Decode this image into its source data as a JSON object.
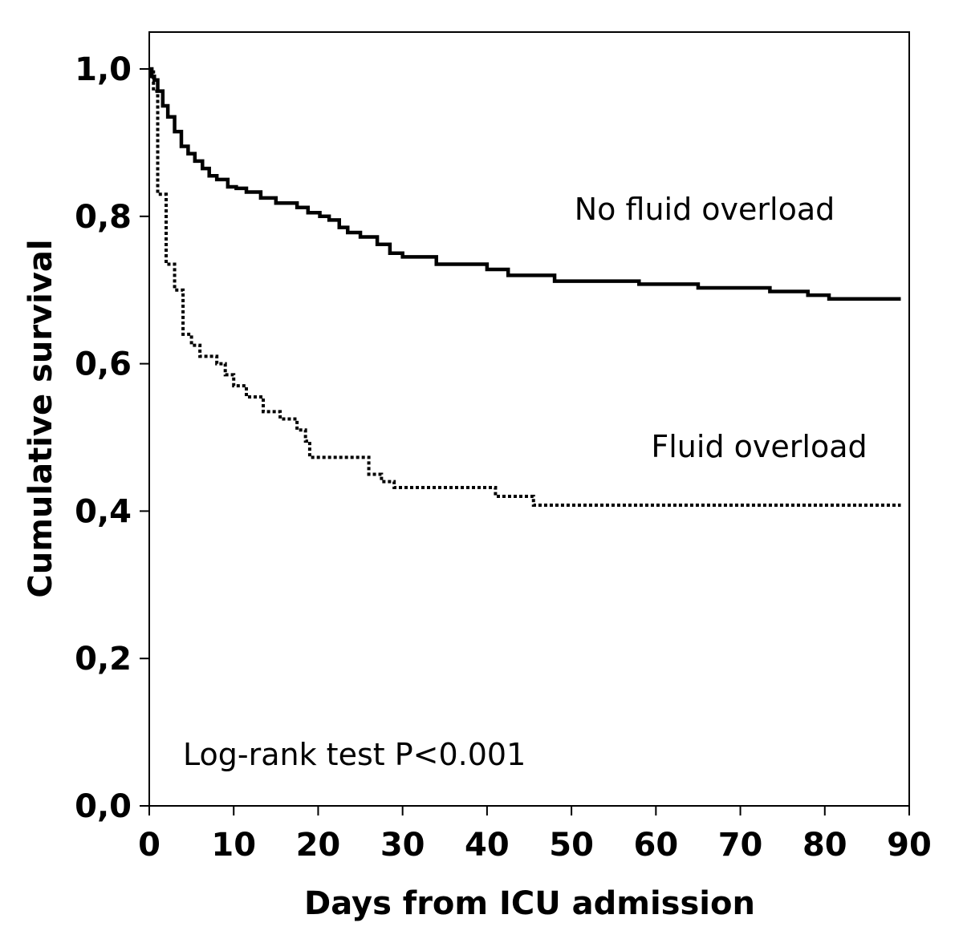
{
  "chart_data": {
    "type": "line",
    "subtype": "kaplan-meier-step",
    "xlabel": "Days from ICU admission",
    "ylabel": "Cumulative survival",
    "xlim": [
      0,
      90
    ],
    "ylim": [
      0,
      1.0
    ],
    "x_ticks": [
      0,
      10,
      20,
      30,
      40,
      50,
      60,
      70,
      80,
      90
    ],
    "x_tick_labels": [
      "0",
      "10",
      "20",
      "30",
      "40",
      "50",
      "60",
      "70",
      "80",
      "90"
    ],
    "y_ticks": [
      0,
      0.2,
      0.4,
      0.6,
      0.8,
      1.0
    ],
    "y_tick_labels": [
      "0,0",
      "0,2",
      "0,4",
      "0,6",
      "0,8",
      "1,0"
    ],
    "grid": false,
    "series": [
      {
        "name": "No fluid overload",
        "line_style": "solid",
        "color": "#000000",
        "x": [
          0,
          0.3,
          0.6,
          1.0,
          1.6,
          2.2,
          3.0,
          3.8,
          4.6,
          5.4,
          6.3,
          7.1,
          8.0,
          9.3,
          10.3,
          11.5,
          13.2,
          15.0,
          17.5,
          18.8,
          20.2,
          21.3,
          22.5,
          23.5,
          25.0,
          27.0,
          28.5,
          30.0,
          34.0,
          37.5,
          40.0,
          42.5,
          48.0,
          58.0,
          65.0,
          73.5,
          78.0,
          80.5,
          89.0
        ],
        "y": [
          1.0,
          0.99,
          0.985,
          0.97,
          0.95,
          0.935,
          0.915,
          0.895,
          0.885,
          0.875,
          0.865,
          0.855,
          0.85,
          0.84,
          0.838,
          0.833,
          0.825,
          0.818,
          0.812,
          0.805,
          0.8,
          0.795,
          0.785,
          0.778,
          0.772,
          0.762,
          0.75,
          0.745,
          0.735,
          0.735,
          0.728,
          0.72,
          0.712,
          0.708,
          0.703,
          0.698,
          0.693,
          0.688,
          0.688
        ]
      },
      {
        "name": "Fluid overload",
        "line_style": "dotted",
        "color": "#000000",
        "x": [
          0,
          0.5,
          1.0,
          2.0,
          3.0,
          4.0,
          5.0,
          6.0,
          8.0,
          9.0,
          10.0,
          11.5,
          13.5,
          15.5,
          17.5,
          18.5,
          19.0,
          26.0,
          27.5,
          29.0,
          41.0,
          45.5,
          89.0
        ],
        "y": [
          1.0,
          0.97,
          0.83,
          0.735,
          0.7,
          0.64,
          0.625,
          0.61,
          0.6,
          0.585,
          0.57,
          0.555,
          0.535,
          0.525,
          0.51,
          0.495,
          0.473,
          0.45,
          0.44,
          0.432,
          0.42,
          0.408,
          0.408
        ]
      }
    ],
    "annotations": [
      {
        "id": "label-no-fluid-overload",
        "text": "No fluid overload"
      },
      {
        "id": "label-fluid-overload",
        "text": "Fluid overload"
      },
      {
        "id": "log-rank-test",
        "text": "Log-rank test P<0.001"
      }
    ]
  }
}
